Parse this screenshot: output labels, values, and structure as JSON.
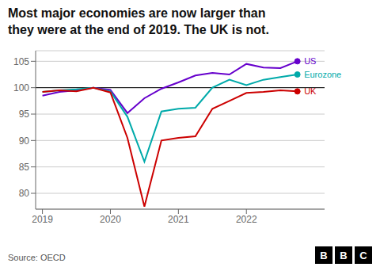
{
  "chart_data": {
    "type": "line",
    "title": "Most major economies are now larger than\nthey were at the end of 2019. The UK is not.",
    "source": "Source: OECD",
    "logo": "BBC",
    "x": [
      2019.0,
      2019.25,
      2019.5,
      2019.75,
      2020.0,
      2020.25,
      2020.5,
      2020.75,
      2021.0,
      2021.25,
      2021.5,
      2021.75,
      2022.0,
      2022.25,
      2022.5,
      2022.75
    ],
    "series": [
      {
        "name": "US",
        "color": "#6600cc",
        "values": [
          98.5,
          99.2,
          99.5,
          100.0,
          99.6,
          95.2,
          98.0,
          99.8,
          101.0,
          102.3,
          102.8,
          102.5,
          104.5,
          103.8,
          103.7,
          105.0
        ]
      },
      {
        "name": "Eurozone",
        "color": "#00aaaa",
        "values": [
          99.2,
          99.5,
          99.7,
          100.0,
          99.3,
          94.5,
          86.0,
          95.5,
          96.0,
          96.2,
          100.0,
          101.5,
          100.5,
          101.5,
          102.0,
          102.5
        ]
      },
      {
        "name": "UK",
        "color": "#cc0000",
        "values": [
          99.2,
          99.5,
          99.3,
          100.0,
          99.1,
          90.5,
          77.5,
          90.0,
          90.5,
          90.8,
          96.0,
          97.5,
          99.0,
          99.2,
          99.5,
          99.3
        ]
      }
    ],
    "reference_line": 100,
    "xlim": [
      2018.9,
      2023.15
    ],
    "xticks": [
      2019,
      2020,
      2021,
      2022
    ],
    "ylim": [
      77,
      107
    ],
    "yticks": [
      80,
      85,
      90,
      95,
      100,
      105
    ],
    "grid": true
  }
}
